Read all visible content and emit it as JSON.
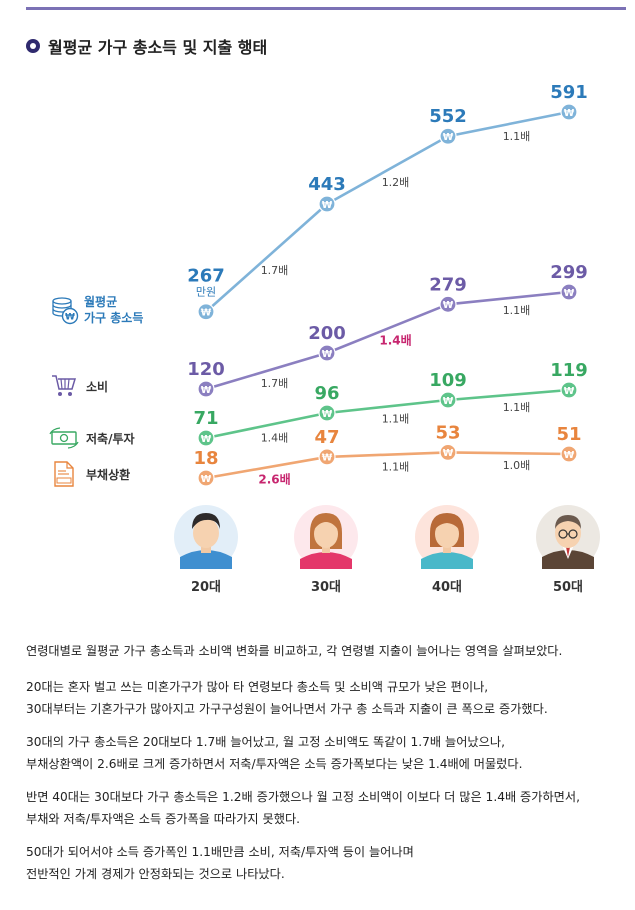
{
  "title": "월평균 가구 총소득 및 지출 행태",
  "legend": {
    "income_line1": "월평균",
    "income_line2": "가구 총소득",
    "consumption": "소비",
    "savings": "저축/투자",
    "debt": "부채상환"
  },
  "icons": {
    "income": "coin-stack-won-icon",
    "consumption": "shopping-cart-icon",
    "savings": "banknote-cycle-icon",
    "debt": "debit-document-icon",
    "marker": "won-marker-icon"
  },
  "colors": {
    "income": "#7fb3d9",
    "income_label": "#2c7ab9",
    "consumption": "#8b7fc0",
    "consumption_label": "#6c5ba6",
    "savings": "#5ec48a",
    "savings_label": "#38a862",
    "debt": "#f0a672",
    "debt_label": "#e8853e",
    "highlight": "#c7266f"
  },
  "chart_data": {
    "type": "line",
    "categories": [
      "20대",
      "30대",
      "40대",
      "50대"
    ],
    "series": [
      {
        "name": "월평균 가구 총소득",
        "key": "income",
        "values": [
          267,
          443,
          552,
          591
        ],
        "first_unit": "만원",
        "ratios": [
          "1.7배",
          "1.2배",
          "1.1배"
        ],
        "ratio_highlight": [
          false,
          false,
          false
        ]
      },
      {
        "name": "소비",
        "key": "consumption",
        "values": [
          120,
          200,
          279,
          299
        ],
        "ratios": [
          "1.7배",
          "1.4배",
          "1.1배"
        ],
        "ratio_highlight": [
          false,
          true,
          false
        ]
      },
      {
        "name": "저축/투자",
        "key": "savings",
        "values": [
          71,
          96,
          109,
          119
        ],
        "ratios": [
          "1.4배",
          "1.1배",
          "1.1배"
        ],
        "ratio_highlight": [
          false,
          false,
          false
        ]
      },
      {
        "name": "부채상환",
        "key": "debt",
        "values": [
          18,
          47,
          53,
          51
        ],
        "ratios": [
          "2.6배",
          "1.1배",
          "1.0배"
        ],
        "ratio_highlight": [
          true,
          false,
          false
        ]
      }
    ]
  },
  "ages": [
    "20대",
    "30대",
    "40대",
    "50대"
  ],
  "paragraphs": [
    [
      "연령대별로 월평균 가구 총소득과 소비액 변화를 비교하고, 각 연령별 지출이 늘어나는 영역을 살펴보았다."
    ],
    [
      "20대는 혼자 벌고 쓰는 미혼가구가 많아 타 연령보다 총소득 및 소비액 규모가 낮은 편이나,",
      "30대부터는 기혼가구가 많아지고 가구구성원이 늘어나면서 가구 총 소득과 지출이 큰 폭으로 증가했다."
    ],
    [
      "30대의 가구 총소득은 20대보다 1.7배 늘어났고, 월 고정 소비액도 똑같이 1.7배 늘어났으나,",
      "부채상환액이 2.6배로 크게 증가하면서 저축/투자액은 소득 증가폭보다는 낮은 1.4배에 머물렀다."
    ],
    [
      "반면 40대는 30대보다 가구 총소득은 1.2배 증가했으나 월 고정 소비액이 이보다 더 많은 1.4배 증가하면서,",
      "부채와 저축/투자액은 소득 증가폭을 따라가지 못했다."
    ],
    [
      "50대가 되어서야 소득 증가폭인 1.1배만큼 소비, 저축/투자액 등이 늘어나며",
      "전반적인 가계 경제가 안정화되는 것으로 나타났다."
    ]
  ]
}
